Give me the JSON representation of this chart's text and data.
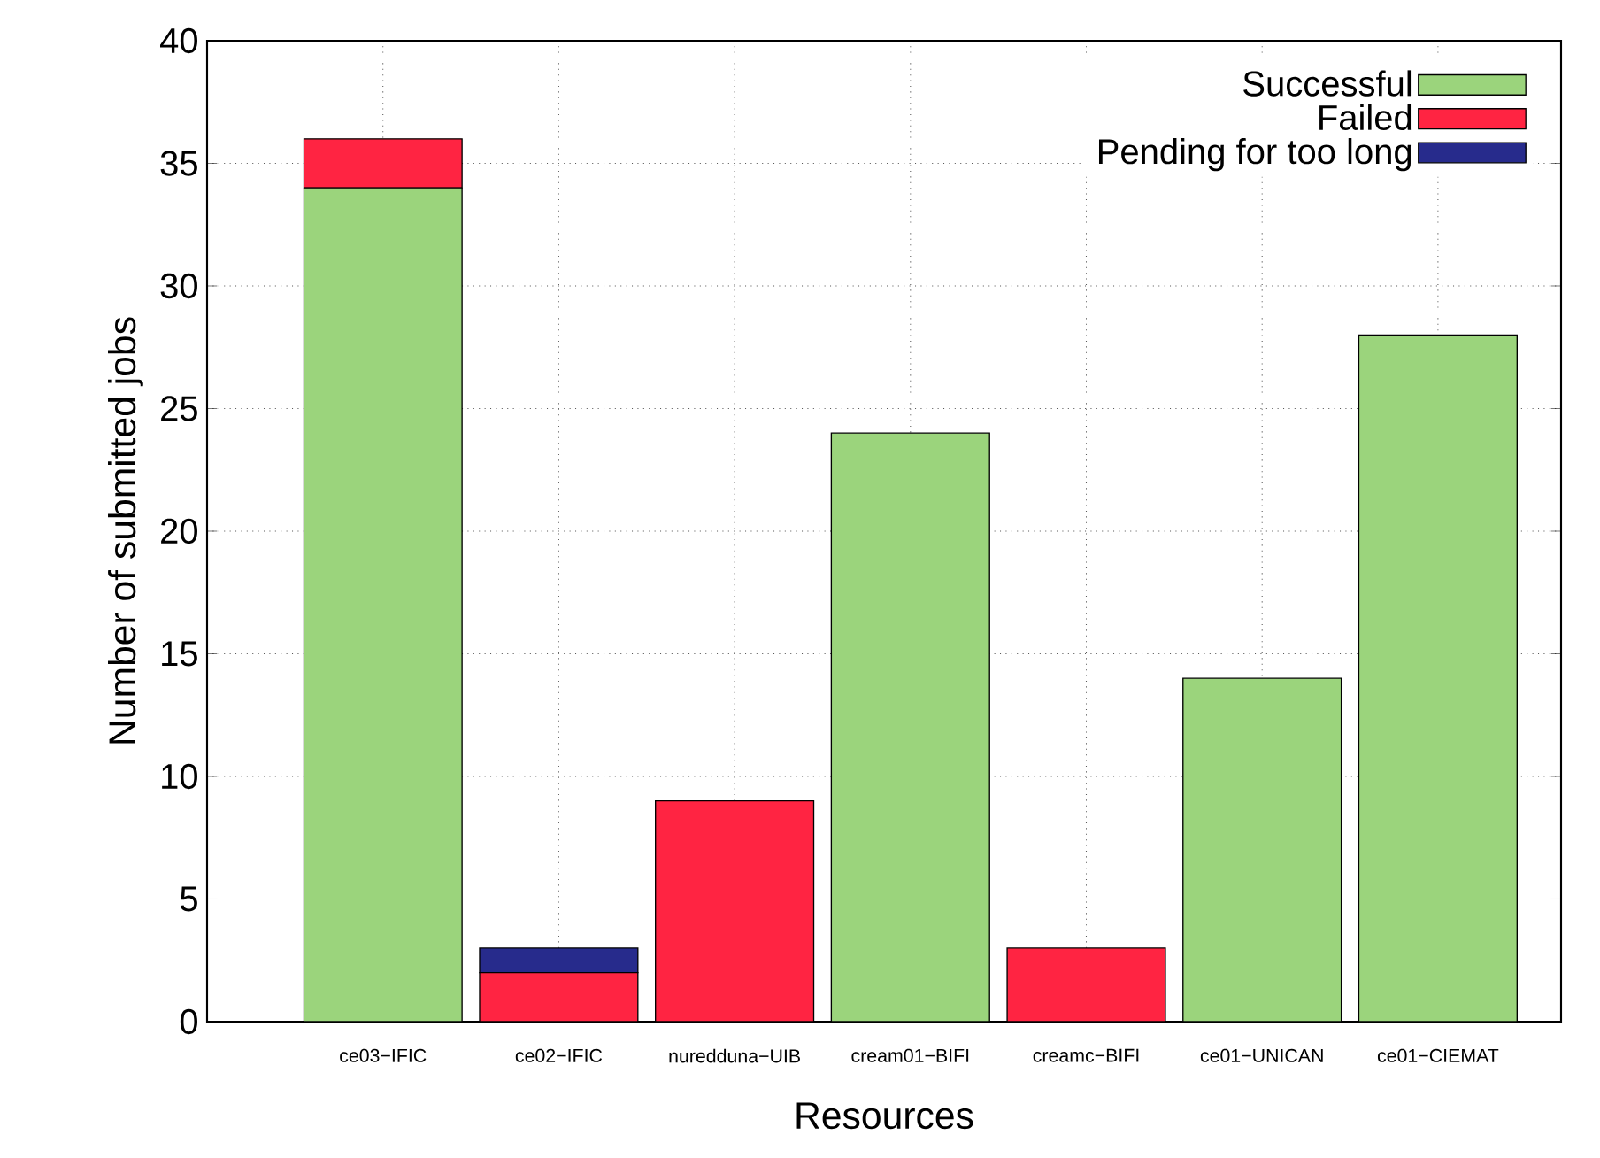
{
  "chart_data": {
    "type": "bar",
    "stacked": true,
    "xlabel": "Resources",
    "ylabel": "Number of submitted jobs",
    "categories": [
      "ce03−IFIC",
      "ce02−IFIC",
      "nuredduna−UIB",
      "cream01−BIFI",
      "creamc−BIFI",
      "ce01−UNICAN",
      "ce01−CIEMAT"
    ],
    "series": [
      {
        "name": "Successful",
        "color": "#9bd47c",
        "values": [
          34,
          0,
          0,
          24,
          0,
          14,
          28
        ]
      },
      {
        "name": "Failed",
        "color": "#ff2442",
        "values": [
          2,
          2,
          9,
          0,
          3,
          0,
          0
        ]
      },
      {
        "name": "Pending for too long",
        "color": "#272b8c",
        "values": [
          0,
          1,
          0,
          0,
          0,
          0,
          0
        ]
      }
    ],
    "ylim": [
      0,
      40
    ],
    "yticks": [
      0,
      5,
      10,
      15,
      20,
      25,
      30,
      35,
      40
    ],
    "grid": true,
    "legend": "top right"
  }
}
